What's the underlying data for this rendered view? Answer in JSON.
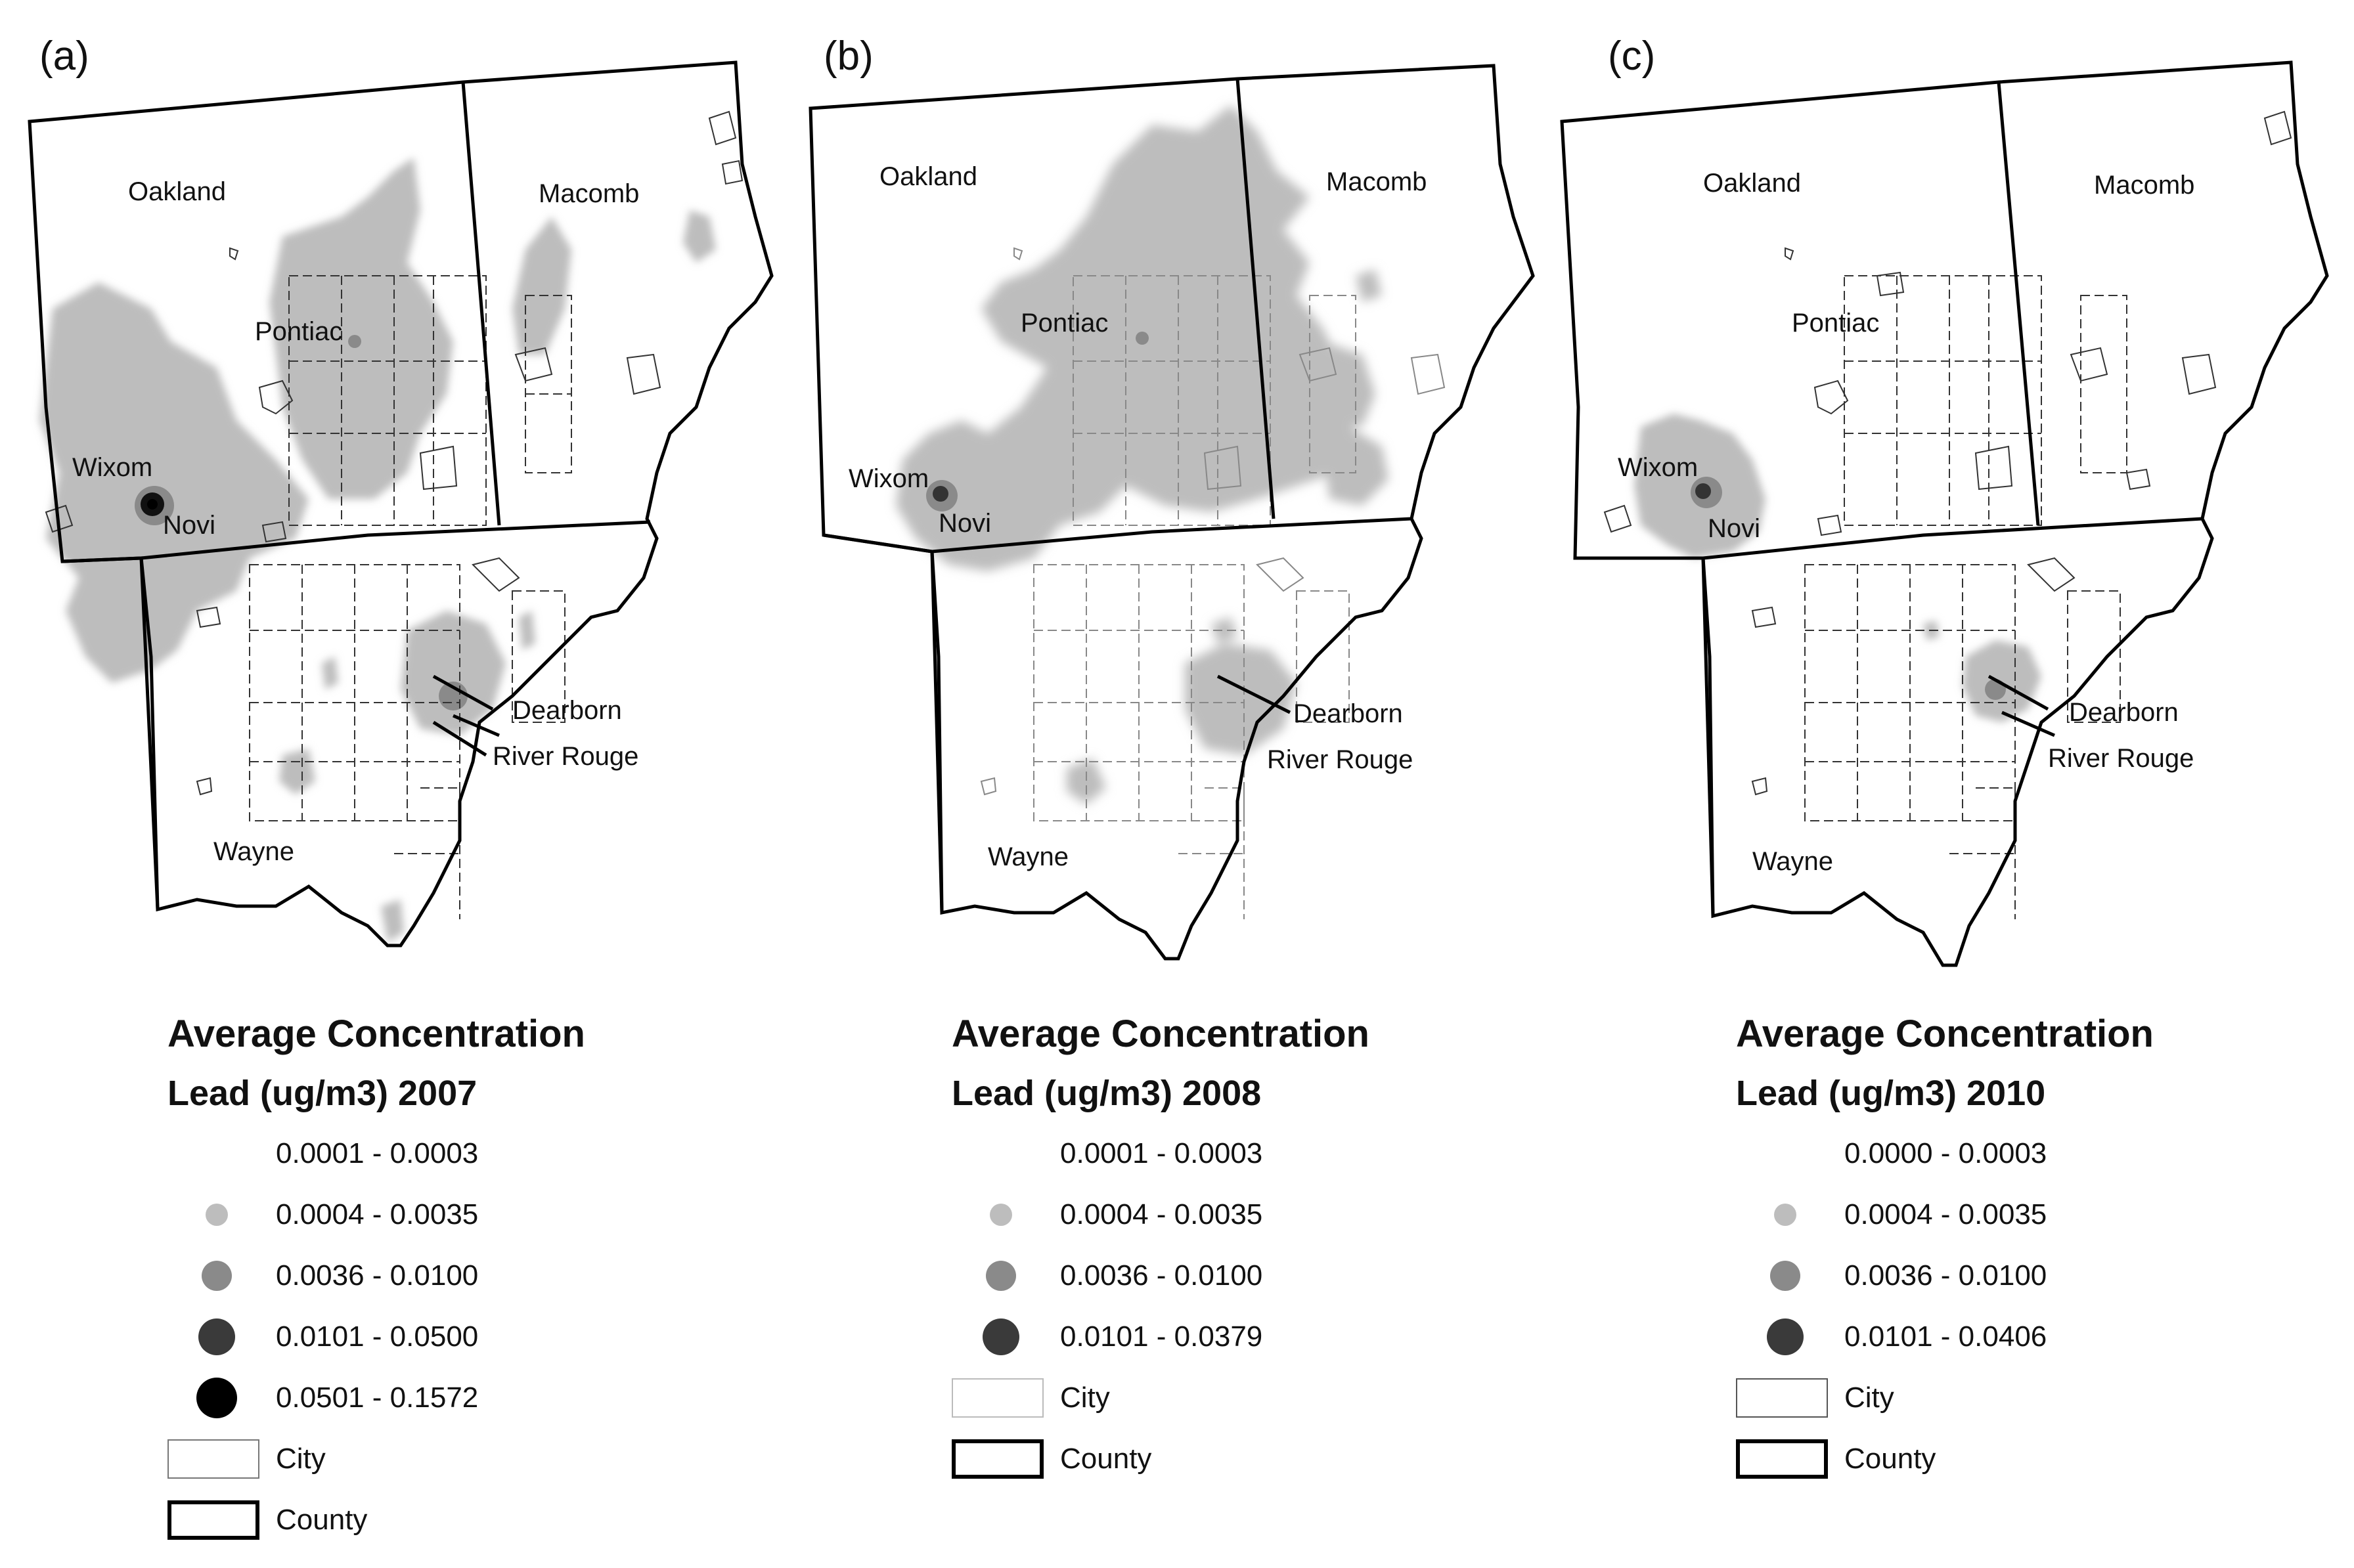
{
  "panels": [
    {
      "letter": "(a)",
      "labels": {
        "oakland": "Oakland",
        "macomb": "Macomb",
        "pontiac": "Pontiac",
        "wixom": "Wixom",
        "novi": "Novi",
        "dearborn": "Dearborn",
        "river_rouge": "River Rouge",
        "wayne": "Wayne"
      },
      "legend": {
        "title": "Average Concentration",
        "subtitle": "Lead (ug/m3) 2007",
        "classes": [
          {
            "label": "0.0001 - 0.0003",
            "color": "#ffffff"
          },
          {
            "label": "0.0004 - 0.0035",
            "color": "#bdbdbd"
          },
          {
            "label": "0.0036 - 0.0100",
            "color": "#8a8a8a"
          },
          {
            "label": "0.0101 - 0.0500",
            "color": "#3a3a3a"
          },
          {
            "label": "0.0501 - 0.1572",
            "color": "#000000"
          }
        ],
        "city_label": "City",
        "county_label": "County"
      }
    },
    {
      "letter": "(b)",
      "labels": {
        "oakland": "Oakland",
        "macomb": "Macomb",
        "pontiac": "Pontiac",
        "wixom": "Wixom",
        "novi": "Novi",
        "dearborn": "Dearborn",
        "river_rouge": "River Rouge",
        "wayne": "Wayne"
      },
      "legend": {
        "title": "Average Concentration",
        "subtitle": "Lead (ug/m3) 2008",
        "classes": [
          {
            "label": "0.0001 - 0.0003",
            "color": "#ffffff"
          },
          {
            "label": "0.0004 - 0.0035",
            "color": "#bdbdbd"
          },
          {
            "label": "0.0036 - 0.0100",
            "color": "#8a8a8a"
          },
          {
            "label": "0.0101 - 0.0379",
            "color": "#3a3a3a"
          }
        ],
        "city_label": "City",
        "county_label": "County"
      }
    },
    {
      "letter": "(c)",
      "labels": {
        "oakland": "Oakland",
        "macomb": "Macomb",
        "pontiac": "Pontiac",
        "wixom": "Wixom",
        "novi": "Novi",
        "dearborn": "Dearborn",
        "river_rouge": "River Rouge",
        "wayne": "Wayne"
      },
      "legend": {
        "title": "Average Concentration",
        "subtitle": "Lead (ug/m3) 2010",
        "classes": [
          {
            "label": "0.0000 - 0.0003",
            "color": "#ffffff"
          },
          {
            "label": "0.0004 - 0.0035",
            "color": "#bdbdbd"
          },
          {
            "label": "0.0036 - 0.0100",
            "color": "#8a8a8a"
          },
          {
            "label": "0.0101 - 0.0406",
            "color": "#3a3a3a"
          }
        ],
        "city_label": "City",
        "county_label": "County"
      }
    }
  ]
}
